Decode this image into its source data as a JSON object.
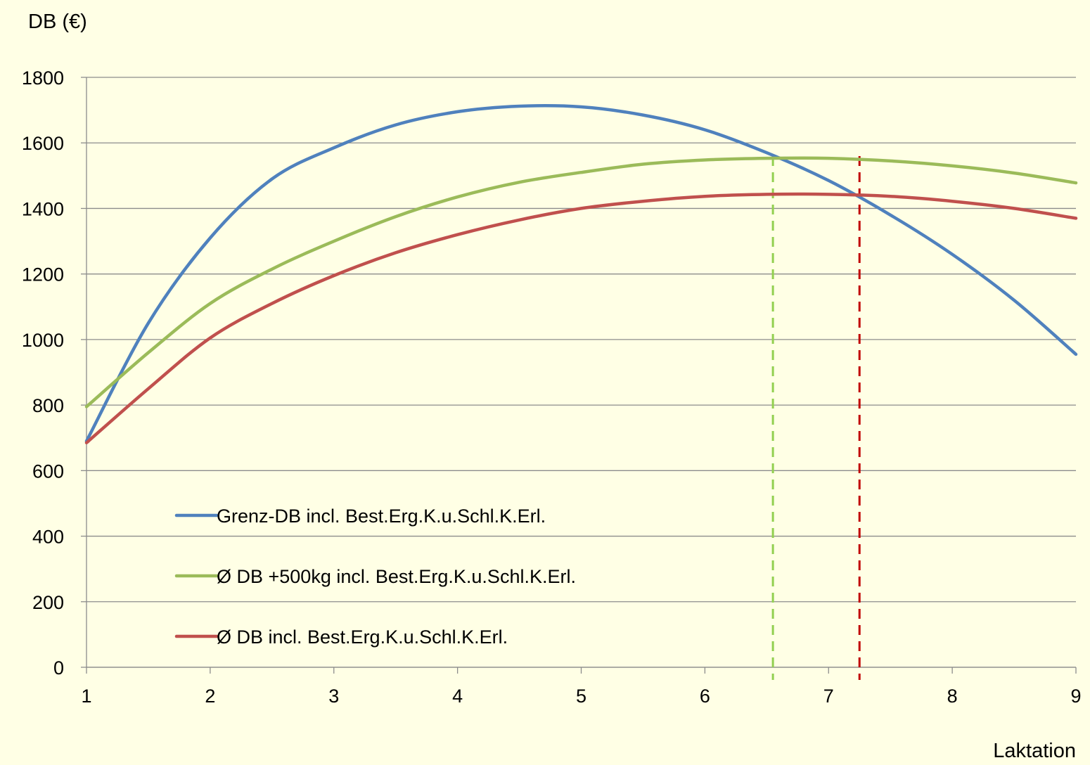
{
  "chart_data": {
    "type": "line",
    "ylabel": "DB (€)",
    "xlabel": "Laktation",
    "xlim": [
      1,
      9
    ],
    "ylim": [
      0,
      1800
    ],
    "x_ticks": [
      "1",
      "2",
      "3",
      "4",
      "5",
      "6",
      "7",
      "8",
      "9"
    ],
    "y_ticks": [
      "0",
      "200",
      "400",
      "600",
      "800",
      "1000",
      "1200",
      "1400",
      "1600",
      "1800"
    ],
    "grid": "horizontal",
    "legend_position": "inside-bottom-left",
    "series": [
      {
        "name": "Grenz-DB incl. Best.Erg.K.u.Schl.K.Erl.",
        "color": "#4F81BD",
        "x": [
          1,
          1.5,
          2,
          2.5,
          3,
          3.5,
          4,
          4.5,
          5,
          5.5,
          6,
          6.5,
          7,
          7.5,
          8,
          8.5,
          9
        ],
        "y": [
          690,
          1050,
          1310,
          1490,
          1585,
          1655,
          1695,
          1712,
          1710,
          1685,
          1640,
          1570,
          1485,
          1380,
          1260,
          1120,
          955
        ]
      },
      {
        "name": "Ø DB +500kg incl. Best.Erg.K.u.Schl.K.Erl.",
        "color": "#9BBB59",
        "x": [
          1,
          1.5,
          2,
          2.5,
          3,
          3.5,
          4,
          4.5,
          5,
          5.5,
          6,
          6.5,
          7,
          7.5,
          8,
          8.5,
          9
        ],
        "y": [
          795,
          960,
          1110,
          1215,
          1300,
          1375,
          1435,
          1480,
          1510,
          1535,
          1548,
          1553,
          1553,
          1545,
          1530,
          1508,
          1478
        ]
      },
      {
        "name": "Ø DB incl. Best.Erg.K.u.Schl.K.Erl.",
        "color": "#C0504D",
        "x": [
          1,
          1.5,
          2,
          2.5,
          3,
          3.5,
          4,
          4.5,
          5,
          5.5,
          6,
          6.5,
          7,
          7.5,
          8,
          8.5,
          9
        ],
        "y": [
          685,
          850,
          1005,
          1110,
          1195,
          1265,
          1320,
          1365,
          1400,
          1422,
          1437,
          1443,
          1443,
          1437,
          1422,
          1400,
          1370
        ]
      }
    ],
    "reference_lines": [
      {
        "x": 6.55,
        "color": "#92D050",
        "style": "dashed"
      },
      {
        "x": 7.25,
        "color": "#C00000",
        "style": "dashed"
      }
    ]
  }
}
